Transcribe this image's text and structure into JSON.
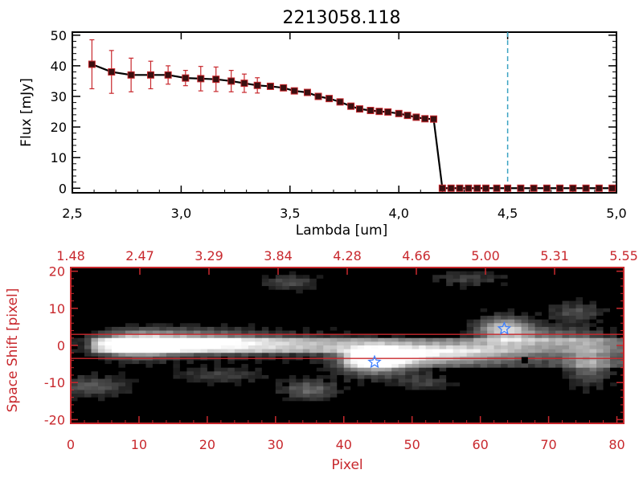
{
  "colors": {
    "red": "#c8282d",
    "black": "#000000",
    "dash": "#3aa3c2",
    "star": "#3d7fff",
    "bg": "#ffffff"
  },
  "chart_data": [
    {
      "type": "line",
      "title": "2213058.118",
      "xlabel": "Lambda [um]",
      "ylabel": "Flux [mJy]",
      "xlim": [
        2.5,
        5.0
      ],
      "ylim": [
        -1.5,
        51
      ],
      "xticks": [
        "2.5",
        "3.0",
        "3.5",
        "4.0",
        "4.5",
        "5.0"
      ],
      "yticks": [
        "0",
        "10",
        "20",
        "30",
        "40",
        "50"
      ],
      "vline_x": 4.5,
      "x": [
        2.59,
        2.68,
        2.77,
        2.86,
        2.94,
        3.02,
        3.09,
        3.16,
        3.23,
        3.29,
        3.35,
        3.41,
        3.47,
        3.52,
        3.58,
        3.63,
        3.68,
        3.73,
        3.78,
        3.82,
        3.87,
        3.91,
        3.95,
        4.0,
        4.04,
        4.08,
        4.12,
        4.16,
        4.2,
        4.24,
        4.28,
        4.32,
        4.36,
        4.4,
        4.45,
        4.5,
        4.56,
        4.62,
        4.68,
        4.74,
        4.8,
        4.86,
        4.92,
        4.98
      ],
      "y": [
        40.5,
        38.0,
        37.0,
        37.0,
        37.0,
        36.0,
        35.8,
        35.6,
        35.0,
        34.3,
        33.6,
        33.3,
        32.8,
        31.8,
        31.3,
        30.0,
        29.3,
        28.2,
        26.8,
        25.9,
        25.4,
        25.1,
        24.9,
        24.4,
        23.8,
        23.2,
        22.7,
        22.6,
        0.0,
        0.0,
        0.0,
        0.0,
        0.0,
        0.0,
        0.0,
        0.0,
        0.0,
        0.0,
        0.0,
        0.0,
        0.0,
        0.0,
        0.0,
        0.0
      ],
      "yerr": [
        8.0,
        7.0,
        5.5,
        4.5,
        3.0,
        2.5,
        4.0,
        4.0,
        3.5,
        3.0,
        2.5,
        0,
        0,
        0,
        0,
        0,
        0,
        0,
        0,
        0,
        0,
        0,
        0,
        0,
        0,
        0,
        0,
        0,
        0,
        0,
        0,
        0,
        0,
        0,
        0,
        0,
        0,
        0,
        0,
        0,
        0,
        0,
        0,
        0
      ]
    },
    {
      "type": "heatmap",
      "xlabel": "Pixel",
      "ylabel": "Space Shift [pixel]",
      "xlim": [
        0,
        81
      ],
      "ylim": [
        -21,
        21
      ],
      "xticks": [
        "0",
        "10",
        "20",
        "30",
        "40",
        "50",
        "60",
        "70",
        "80"
      ],
      "yticks": [
        "-20",
        "-10",
        "0",
        "10",
        "20"
      ],
      "top_ticks": [
        "1.48",
        "2.47",
        "3.29",
        "3.84",
        "4.28",
        "4.66",
        "5.00",
        "5.31",
        "5.55"
      ],
      "hlines": [
        3.0,
        -3.5
      ],
      "stars": [
        {
          "x": 63.5,
          "y": 4.5
        },
        {
          "x": 44.5,
          "y": -4.5
        }
      ],
      "marker": {
        "x": 66.5,
        "y": -4.0
      }
    }
  ]
}
